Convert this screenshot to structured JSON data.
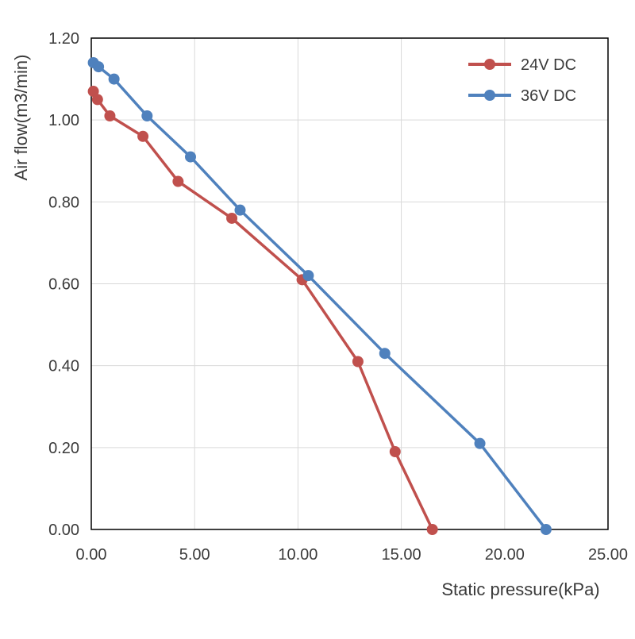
{
  "chart_data": {
    "type": "line",
    "title": "",
    "xlabel": "Static pressure(kPa)",
    "ylabel": "Air flow(m3/min)",
    "xlim": [
      0,
      25
    ],
    "ylim": [
      0,
      1.2
    ],
    "xticks": [
      "0.00",
      "5.00",
      "10.00",
      "15.00",
      "20.00",
      "25.00"
    ],
    "yticks": [
      "0.00",
      "0.20",
      "0.40",
      "0.60",
      "0.80",
      "1.00",
      "1.20"
    ],
    "grid": true,
    "legend_position": "top-right",
    "series": [
      {
        "name": "24V DC",
        "color": "#c0504d",
        "x": [
          0.1,
          0.3,
          0.9,
          2.5,
          4.2,
          6.8,
          10.2,
          12.9,
          14.7,
          16.5
        ],
        "y": [
          1.07,
          1.05,
          1.01,
          0.96,
          0.85,
          0.76,
          0.61,
          0.41,
          0.19,
          0.0
        ]
      },
      {
        "name": "36V DC",
        "color": "#4f81bd",
        "x": [
          0.1,
          0.35,
          1.1,
          2.7,
          4.8,
          7.2,
          10.5,
          14.2,
          18.8,
          22.0
        ],
        "y": [
          1.14,
          1.13,
          1.1,
          1.01,
          0.91,
          0.78,
          0.62,
          0.43,
          0.21,
          0.0
        ]
      }
    ]
  }
}
